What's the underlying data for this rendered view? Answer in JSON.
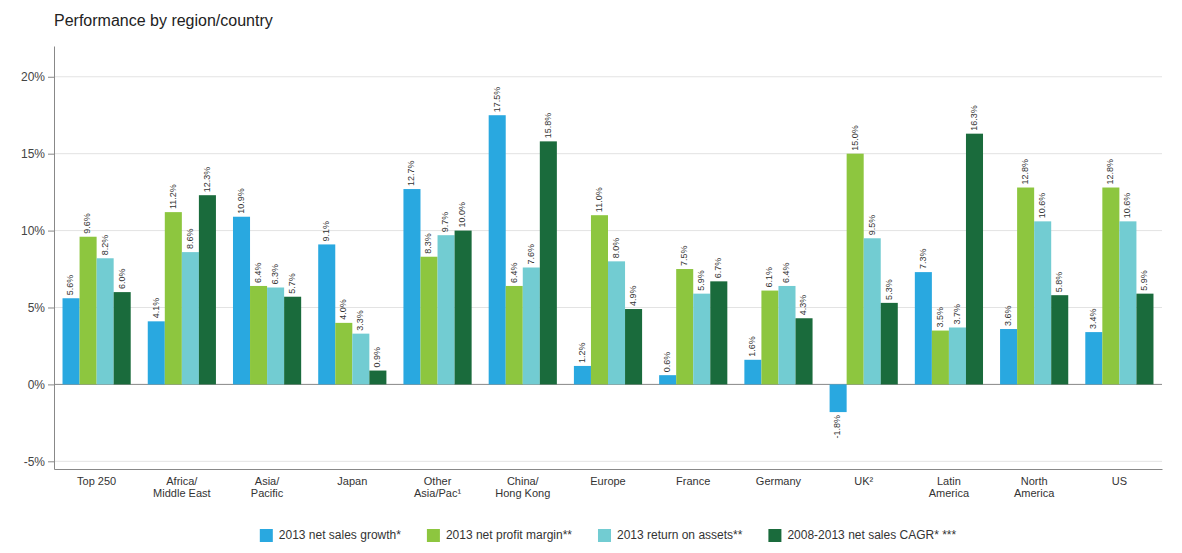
{
  "chart_data": {
    "type": "bar",
    "title": "Performance by region/country",
    "categories": [
      "Top 250",
      "Africa/\nMiddle East",
      "Asia/\nPacific",
      "Japan",
      "Other\nAsia/Pac¹",
      "China/\nHong Kong",
      "Europe",
      "France",
      "Germany",
      "UK²",
      "Latin\nAmerica",
      "North\nAmerica",
      "US"
    ],
    "series": [
      {
        "name": "2013 net sales growth*",
        "color": "#29a8e0",
        "values": [
          5.6,
          4.1,
          10.9,
          9.1,
          12.7,
          17.5,
          1.2,
          0.6,
          1.6,
          -1.8,
          7.3,
          3.6,
          3.4
        ],
        "value_labels": [
          "5.6%",
          "4.1%",
          "10.9%",
          "9.1%",
          "12.7%",
          "17.5%",
          "1.2%",
          "0.6%",
          "1.6%",
          "-1.8%",
          "7.3%",
          "3.6%",
          "3.4%"
        ]
      },
      {
        "name": "2013 net profit margin**",
        "color": "#8dc63f",
        "values": [
          9.6,
          11.2,
          6.4,
          4.0,
          8.3,
          6.4,
          11.0,
          7.5,
          6.1,
          15.0,
          3.5,
          12.8,
          12.8
        ],
        "value_labels": [
          "9.6%",
          "11.2%",
          "6.4%",
          "4.0%",
          "8.3%",
          "6.4%",
          "11.0%",
          "7.5%",
          "6.1%",
          "15.0%",
          "3.5%",
          "12.8%",
          "12.8%"
        ]
      },
      {
        "name": "2013 return on assets**",
        "color": "#72ccd2",
        "values": [
          8.2,
          8.6,
          6.3,
          3.3,
          9.7,
          7.6,
          8.0,
          5.9,
          6.4,
          9.5,
          3.7,
          10.6,
          10.6
        ],
        "value_labels": [
          "8.2%",
          "8.6%",
          "6.3%",
          "3.3%",
          "9.7%",
          "7.6%",
          "8.0%",
          "5.9%",
          "6.4%",
          "9.5%",
          "3.7%",
          "10.6%",
          "10.6%"
        ]
      },
      {
        "name": "2008-2013 net sales CAGR* ***",
        "color": "#1a6b3c",
        "values": [
          6.0,
          12.3,
          5.7,
          0.9,
          10.0,
          15.8,
          4.9,
          6.7,
          4.3,
          5.3,
          16.3,
          5.8,
          5.9
        ],
        "value_labels": [
          "6.0%",
          "12.3%",
          "5.7%",
          "0.9%",
          "10.0%",
          "15.8%",
          "4.9%",
          "6.7%",
          "4.3%",
          "5.3%",
          "16.3%",
          "5.8%",
          "5.9%"
        ]
      }
    ],
    "ylim": [
      -5.5,
      22
    ],
    "yticks": [
      {
        "value": -5,
        "label": "-5%"
      },
      {
        "value": 0,
        "label": "0%"
      },
      {
        "value": 5,
        "label": "5%"
      },
      {
        "value": 10,
        "label": "10%"
      },
      {
        "value": 15,
        "label": "15%"
      },
      {
        "value": 20,
        "label": "20%"
      }
    ],
    "grid": true,
    "legend": "bottom",
    "data_labels": true
  }
}
